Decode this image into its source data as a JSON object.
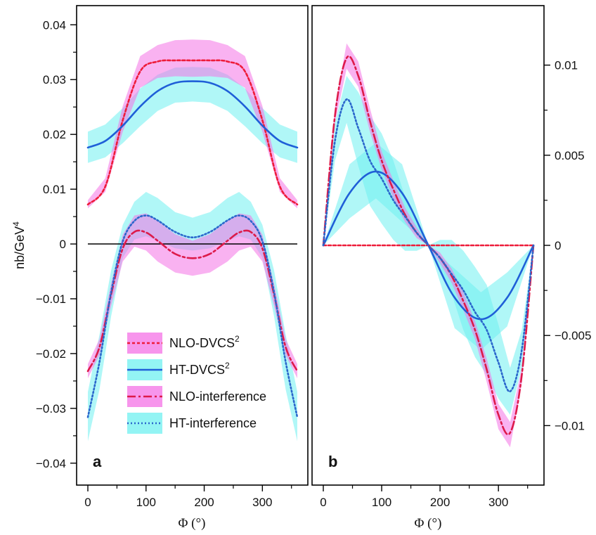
{
  "chart_data": [
    {
      "type": "line",
      "panel_label": "a",
      "xlabel": "Φ (°)",
      "ylabel": "nb/GeV⁴",
      "xlim": [
        -8,
        368
      ],
      "ylim": [
        -0.044,
        0.0435
      ],
      "xticks": [
        0,
        100,
        200,
        300
      ],
      "yticks": [
        -0.04,
        -0.03,
        -0.02,
        -0.01,
        0,
        0.01,
        0.02,
        0.03,
        0.04
      ],
      "ytick_labels": [
        "−0.04",
        "−0.03",
        "−0.02",
        "−0.01",
        "0",
        "0.01",
        "0.02",
        "0.03",
        "0.04"
      ],
      "y_axis_side": "left",
      "grid": false,
      "zero_line": true,
      "legend": {
        "position": "bottom-center",
        "entries": [
          {
            "label": "NLO-DVCS",
            "sup": "2",
            "line_color": "#ee1c3a",
            "band_color": "#f472e6",
            "dash": "4,3"
          },
          {
            "label": "HT-DVCS",
            "sup": "2",
            "line_color": "#1f5fd8",
            "band_color": "#6ff0f0",
            "dash": ""
          },
          {
            "label": "NLO-interference",
            "sup": "",
            "line_color": "#dd1a4a",
            "band_color": "#f472e6",
            "dash": "12,4,3,4"
          },
          {
            "label": "HT-interference",
            "sup": "",
            "line_color": "#2a66cc",
            "band_color": "#6ff0f0",
            "dash": "2,3"
          }
        ]
      },
      "series": [
        {
          "name": "NLO-DVCS²",
          "x": [
            0,
            30,
            60,
            90,
            120,
            150,
            180,
            210,
            240,
            270,
            300,
            330,
            360
          ],
          "y": [
            0.0072,
            0.0105,
            0.0226,
            0.0315,
            0.0333,
            0.0335,
            0.0335,
            0.0335,
            0.0333,
            0.0315,
            0.0226,
            0.0105,
            0.0072
          ],
          "band_low": [
            0.0065,
            0.0095,
            0.0205,
            0.0285,
            0.0303,
            0.0306,
            0.0305,
            0.0306,
            0.0303,
            0.0285,
            0.0205,
            0.0095,
            0.0065
          ],
          "band_high": [
            0.008,
            0.012,
            0.0252,
            0.0343,
            0.0363,
            0.0372,
            0.0373,
            0.0372,
            0.0363,
            0.0343,
            0.0252,
            0.012,
            0.008
          ]
        },
        {
          "name": "HT-DVCS²",
          "x": [
            0,
            30,
            60,
            90,
            120,
            150,
            180,
            210,
            240,
            270,
            300,
            330,
            360
          ],
          "y": [
            0.0176,
            0.0188,
            0.0216,
            0.0251,
            0.0279,
            0.0294,
            0.0297,
            0.0294,
            0.0279,
            0.0251,
            0.0216,
            0.0188,
            0.0176
          ],
          "band_low": [
            0.0148,
            0.0158,
            0.0184,
            0.0215,
            0.0243,
            0.0258,
            0.026,
            0.0258,
            0.0243,
            0.0215,
            0.0184,
            0.0158,
            0.0148
          ],
          "band_high": [
            0.0205,
            0.0218,
            0.0248,
            0.0284,
            0.0309,
            0.0322,
            0.0323,
            0.0322,
            0.0309,
            0.0284,
            0.0248,
            0.0218,
            0.0205
          ]
        },
        {
          "name": "NLO-interference",
          "x": [
            0,
            20,
            40,
            60,
            80,
            100,
            120,
            150,
            180,
            210,
            240,
            260,
            280,
            300,
            320,
            340,
            360
          ],
          "y": [
            -0.0232,
            -0.0188,
            -0.0092,
            -0.0008,
            0.0022,
            0.0021,
            0.0006,
            -0.0018,
            -0.0026,
            -0.0018,
            0.0006,
            0.0021,
            0.0022,
            -0.0008,
            -0.0092,
            -0.0188,
            -0.0232
          ],
          "band_low": [
            -0.0245,
            -0.0203,
            -0.0113,
            -0.0032,
            -0.0005,
            -0.0012,
            -0.0032,
            -0.0052,
            -0.0058,
            -0.0052,
            -0.0032,
            -0.0012,
            -0.0005,
            -0.0032,
            -0.0113,
            -0.0203,
            -0.0245
          ],
          "band_high": [
            -0.0219,
            -0.0173,
            -0.0072,
            0.0017,
            0.0052,
            0.0056,
            0.0042,
            0.0018,
            0.0006,
            0.0018,
            0.0042,
            0.0056,
            0.0052,
            0.0017,
            -0.0072,
            -0.0173,
            -0.0219
          ]
        },
        {
          "name": "HT-interference",
          "x": [
            0,
            20,
            40,
            60,
            80,
            100,
            120,
            150,
            180,
            210,
            240,
            260,
            280,
            300,
            320,
            340,
            360
          ],
          "y": [
            -0.0316,
            -0.0215,
            -0.0088,
            0.0005,
            0.0042,
            0.0052,
            0.0043,
            0.0022,
            0.0012,
            0.0022,
            0.0043,
            0.0052,
            0.0042,
            0.0005,
            -0.0088,
            -0.0215,
            -0.0316
          ],
          "band_low": [
            -0.036,
            -0.0265,
            -0.0132,
            -0.0025,
            0.0008,
            0.0014,
            0.0006,
            -0.0008,
            -0.0012,
            -0.0008,
            0.0006,
            0.0014,
            0.0008,
            -0.0025,
            -0.0132,
            -0.0265,
            -0.036
          ],
          "band_high": [
            -0.027,
            -0.0165,
            -0.0048,
            0.0035,
            0.0077,
            0.0095,
            0.0084,
            0.0058,
            0.0048,
            0.0058,
            0.0084,
            0.0095,
            0.0077,
            0.0035,
            -0.0048,
            -0.0165,
            -0.027
          ]
        }
      ]
    },
    {
      "type": "line",
      "panel_label": "b",
      "xlabel": "Φ (°)",
      "ylabel": "",
      "xlim": [
        -8,
        368
      ],
      "ylim": [
        -0.0133,
        0.0133
      ],
      "xticks": [
        0,
        100,
        200,
        300
      ],
      "yticks": [
        -0.01,
        -0.005,
        0,
        0.005,
        0.01
      ],
      "ytick_labels": [
        "−0.01",
        "−0.005",
        "0",
        "0.005",
        "0.01"
      ],
      "y_axis_side": "right",
      "grid": false,
      "zero_line": false,
      "series": [
        {
          "name": "NLO-DVCS²",
          "x": [
            0,
            360
          ],
          "y": [
            0,
            0
          ],
          "band_low": [
            0,
            0
          ],
          "band_high": [
            0,
            0
          ]
        },
        {
          "name": "HT-DVCS²",
          "x": [
            0,
            45,
            90,
            135,
            180,
            225,
            270,
            315,
            360
          ],
          "y": [
            0,
            0.0029,
            0.0041,
            0.0029,
            0,
            -0.0029,
            -0.0041,
            -0.0029,
            0
          ],
          "band_low": [
            0,
            0.0015,
            0.0026,
            0.0013,
            0,
            -0.0046,
            -0.0058,
            -0.0045,
            0
          ],
          "band_high": [
            0,
            0.0045,
            0.0057,
            0.0045,
            0,
            -0.0013,
            -0.0026,
            -0.0015,
            0
          ]
        },
        {
          "name": "NLO-interference",
          "x": [
            0,
            20,
            40,
            60,
            80,
            100,
            120,
            140,
            160,
            180,
            200,
            220,
            240,
            260,
            280,
            300,
            320,
            340,
            360
          ],
          "y": [
            0,
            0.0072,
            0.0104,
            0.0094,
            0.0069,
            0.0047,
            0.0031,
            0.0017,
            0.0007,
            0,
            -0.0007,
            -0.0017,
            -0.0031,
            -0.0047,
            -0.0069,
            -0.0094,
            -0.0104,
            -0.0072,
            0
          ],
          "band_low": [
            0,
            0.0068,
            0.0098,
            0.0088,
            0.0063,
            0.0042,
            0.0026,
            0.0013,
            0.0004,
            0,
            -0.001,
            -0.0021,
            -0.0036,
            -0.0052,
            -0.0076,
            -0.0102,
            -0.0112,
            -0.0077,
            0
          ],
          "band_high": [
            0,
            0.0077,
            0.0112,
            0.0102,
            0.0076,
            0.0052,
            0.0036,
            0.0021,
            0.001,
            0,
            -0.0004,
            -0.0013,
            -0.0026,
            -0.0042,
            -0.0063,
            -0.0088,
            -0.0098,
            -0.0068,
            0
          ]
        },
        {
          "name": "HT-interference",
          "x": [
            0,
            20,
            40,
            60,
            80,
            100,
            120,
            140,
            160,
            180,
            200,
            220,
            240,
            260,
            280,
            300,
            320,
            340,
            360
          ],
          "y": [
            0,
            0.0058,
            0.0081,
            0.0065,
            0.0047,
            0.0037,
            0.0025,
            0.0016,
            0.0007,
            0,
            -0.0007,
            -0.0016,
            -0.0025,
            -0.0037,
            -0.0047,
            -0.0065,
            -0.0081,
            -0.0058,
            0
          ],
          "band_low": [
            0,
            0.0047,
            0.0068,
            0.0044,
            0.0022,
            0.0012,
            0.0003,
            -0.0003,
            -0.0003,
            0,
            -0.0012,
            -0.0027,
            -0.0047,
            -0.0062,
            -0.0072,
            -0.0085,
            -0.0094,
            -0.0068,
            0
          ],
          "band_high": [
            0,
            0.0068,
            0.0094,
            0.0085,
            0.0072,
            0.0062,
            0.0047,
            0.0027,
            0.0012,
            0,
            0.0003,
            0.0003,
            -0.0003,
            -0.0012,
            -0.0022,
            -0.0044,
            -0.0068,
            -0.0047,
            0
          ]
        }
      ]
    }
  ]
}
